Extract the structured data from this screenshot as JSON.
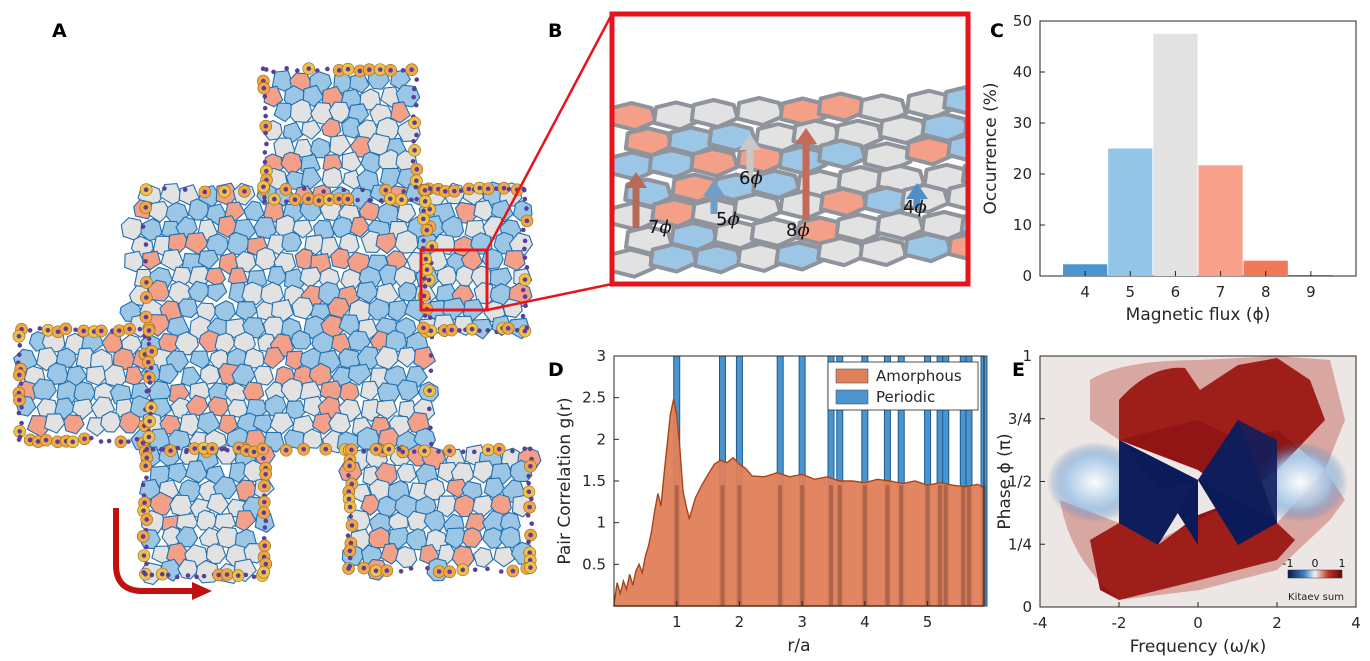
{
  "panels": {
    "A": {
      "letter": "A"
    },
    "B": {
      "letter": "B",
      "flux_labels": [
        {
          "text": "7ϕ",
          "color": "#b76a58"
        },
        {
          "text": "5ϕ",
          "color": "#6f9fc6"
        },
        {
          "text": "6ϕ",
          "color": "#c8c8c8"
        },
        {
          "text": "8ϕ",
          "color": "#c46a58"
        },
        {
          "text": "4ϕ",
          "color": "#4f8fc8"
        }
      ]
    },
    "C": {
      "letter": "C"
    },
    "D": {
      "letter": "D"
    },
    "E": {
      "letter": "E"
    }
  },
  "colors": {
    "blue_plaquette": "#9cc6e6",
    "salmon_plaquette": "#f4a088",
    "grey_plaquette": "#e2e2e2",
    "highlight_box": "#e8141c",
    "arrow_red": "#c01010",
    "amorphous": "#e0805a",
    "periodic": "#4a95cf"
  },
  "chart_data": [
    {
      "id": "C",
      "type": "bar",
      "categories": [
        "4",
        "5",
        "6",
        "7",
        "8",
        "9"
      ],
      "values": [
        2.3,
        25,
        47.5,
        21.7,
        3,
        0.2
      ],
      "bar_colors": [
        "#4a95cf",
        "#93c5e6",
        "#e2e2e2",
        "#f9a08a",
        "#f07a58",
        "#d04c30"
      ],
      "xlabel": "Magnetic flux (ϕ)",
      "ylabel": "Occurrence (%)",
      "ylim": [
        0,
        50
      ],
      "yticks": [
        "0",
        "10",
        "20",
        "30",
        "40",
        "50"
      ],
      "xlim": [
        3,
        10
      ]
    },
    {
      "id": "D",
      "type": "area",
      "xlabel": "r/a",
      "ylabel": "Pair Correlation g(r)",
      "ylim": [
        0,
        3
      ],
      "xlim": [
        0,
        5.9
      ],
      "xticks": [
        "1",
        "2",
        "3",
        "4",
        "5"
      ],
      "yticks": [
        "0.5",
        "1",
        "1.5",
        "2",
        "2.5",
        "3"
      ],
      "legend_position": "top-right",
      "series": [
        {
          "name": "Amorphous",
          "x": [
            0.0,
            0.05,
            0.1,
            0.15,
            0.2,
            0.25,
            0.3,
            0.35,
            0.4,
            0.45,
            0.5,
            0.55,
            0.6,
            0.65,
            0.7,
            0.75,
            0.8,
            0.85,
            0.9,
            0.95,
            1.0,
            1.05,
            1.1,
            1.15,
            1.2,
            1.3,
            1.4,
            1.5,
            1.6,
            1.7,
            1.8,
            1.9,
            2.0,
            2.1,
            2.2,
            2.4,
            2.6,
            2.8,
            3.0,
            3.2,
            3.4,
            3.6,
            3.8,
            4.0,
            4.2,
            4.4,
            4.6,
            4.8,
            5.0,
            5.2,
            5.4,
            5.6,
            5.8,
            5.9
          ],
          "values": [
            0.02,
            0.28,
            0.15,
            0.3,
            0.2,
            0.38,
            0.25,
            0.42,
            0.5,
            0.4,
            0.6,
            0.72,
            0.9,
            1.15,
            1.35,
            1.2,
            1.6,
            1.95,
            2.3,
            2.48,
            2.3,
            1.9,
            1.38,
            1.2,
            1.05,
            1.3,
            1.45,
            1.58,
            1.7,
            1.75,
            1.72,
            1.78,
            1.7,
            1.65,
            1.56,
            1.55,
            1.6,
            1.55,
            1.58,
            1.52,
            1.55,
            1.5,
            1.5,
            1.48,
            1.52,
            1.5,
            1.47,
            1.5,
            1.45,
            1.48,
            1.45,
            1.43,
            1.46,
            1.42
          ]
        },
        {
          "name": "Periodic",
          "peaks_x": [
            1.0,
            1.73,
            2.0,
            2.65,
            3.0,
            3.46,
            3.6,
            4.0,
            4.36,
            4.58,
            5.0,
            5.2,
            5.29,
            5.57,
            5.66,
            5.9
          ]
        }
      ]
    },
    {
      "id": "E",
      "type": "heatmap",
      "xlabel": "Frequency (ω/κ)",
      "ylabel": "Phase ϕ (π)",
      "xlim": [
        -4,
        4
      ],
      "xticks": [
        "-4",
        "-2",
        "0",
        "2",
        "4"
      ],
      "yticks": [
        "0",
        "1/4",
        "1/2",
        "3/4",
        "1"
      ],
      "colorbar": {
        "label": "Kitaev sum",
        "ticks": [
          "-1",
          "0",
          "1"
        ]
      }
    }
  ]
}
